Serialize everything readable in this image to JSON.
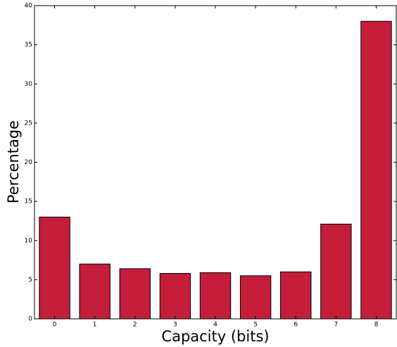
{
  "chart_data": {
    "type": "bar",
    "xlabel": "Capacity (bits)",
    "ylabel": "Percentage",
    "categories": [
      "0",
      "1",
      "2",
      "3",
      "4",
      "5",
      "6",
      "7",
      "8"
    ],
    "values": [
      13,
      7,
      6.4,
      5.8,
      5.9,
      5.5,
      6,
      12.1,
      38
    ],
    "color": "#c41e3a",
    "ylim": [
      0,
      40
    ],
    "yticks": [
      0,
      5,
      10,
      15,
      20,
      25,
      30,
      35,
      40
    ]
  }
}
